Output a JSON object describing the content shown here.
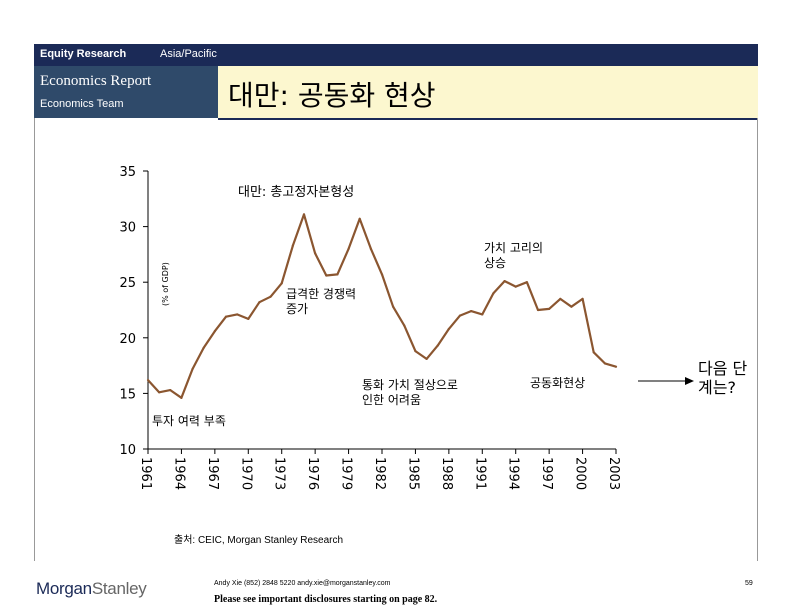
{
  "header": {
    "section": "Equity Research",
    "region": "Asia/Pacific",
    "report": "Economics Report",
    "team": "Economics Team",
    "title": "대만: 공동화  현상"
  },
  "colors": {
    "header_bar": "#1b2a57",
    "left_box": "#2f4a6a",
    "title_bg": "#fcf7cf",
    "line": "#8b5630"
  },
  "chart_data": {
    "type": "line",
    "title": "대만: 총고정자본형성",
    "ylabel": "(% of GDP)",
    "ylim": [
      10,
      35
    ],
    "yticks": [
      10,
      15,
      20,
      25,
      30,
      35
    ],
    "xlim": [
      1961,
      2003
    ],
    "xticks": [
      "1961",
      "1964",
      "1967",
      "1970",
      "1973",
      "1976",
      "1979",
      "1982",
      "1985",
      "1988",
      "1991",
      "1994",
      "1997",
      "2000",
      "2003"
    ],
    "grid": false,
    "series": [
      {
        "x": [
          1961,
          1962,
          1963,
          1964,
          1965,
          1966,
          1967,
          1968,
          1969,
          1970,
          1971,
          1972,
          1973,
          1974,
          1975,
          1976,
          1977,
          1978,
          1979,
          1980,
          1981,
          1982,
          1983,
          1984,
          1985,
          1986,
          1987,
          1988,
          1989,
          1990,
          1991,
          1992,
          1993,
          1994,
          1995,
          1996,
          1997,
          1998,
          1999,
          2000,
          2001,
          2002,
          2003
        ],
        "values": [
          16.2,
          15.1,
          15.3,
          14.6,
          17.2,
          19.1,
          20.6,
          21.9,
          22.1,
          21.7,
          23.2,
          23.7,
          24.9,
          28.3,
          31.1,
          27.6,
          25.6,
          25.7,
          28.0,
          30.7,
          28.0,
          25.7,
          22.8,
          21.1,
          18.8,
          18.1,
          19.3,
          20.8,
          22.0,
          22.4,
          22.1,
          24.0,
          25.1,
          24.6,
          25.0,
          22.5,
          22.6,
          23.5,
          22.8,
          23.5,
          18.7,
          17.7,
          17.4
        ]
      }
    ],
    "annotations": [
      "급격한 경쟁력 증가",
      "가치 고리의 상승",
      "통화 가치 절상으로 인한 어려움",
      "공동화현상",
      "투자 여력 부족"
    ],
    "callout": "다음 단계는?"
  },
  "footer": {
    "source": "출처: CEIC, Morgan Stanley Research",
    "logo_first": "Morgan",
    "logo_second": "Stanley",
    "contact": "Andy Xie (852) 2848 5220 andy.xie@morganstanley.com",
    "disclosure": "Please see important disclosures starting on page 82.",
    "page": "59"
  }
}
